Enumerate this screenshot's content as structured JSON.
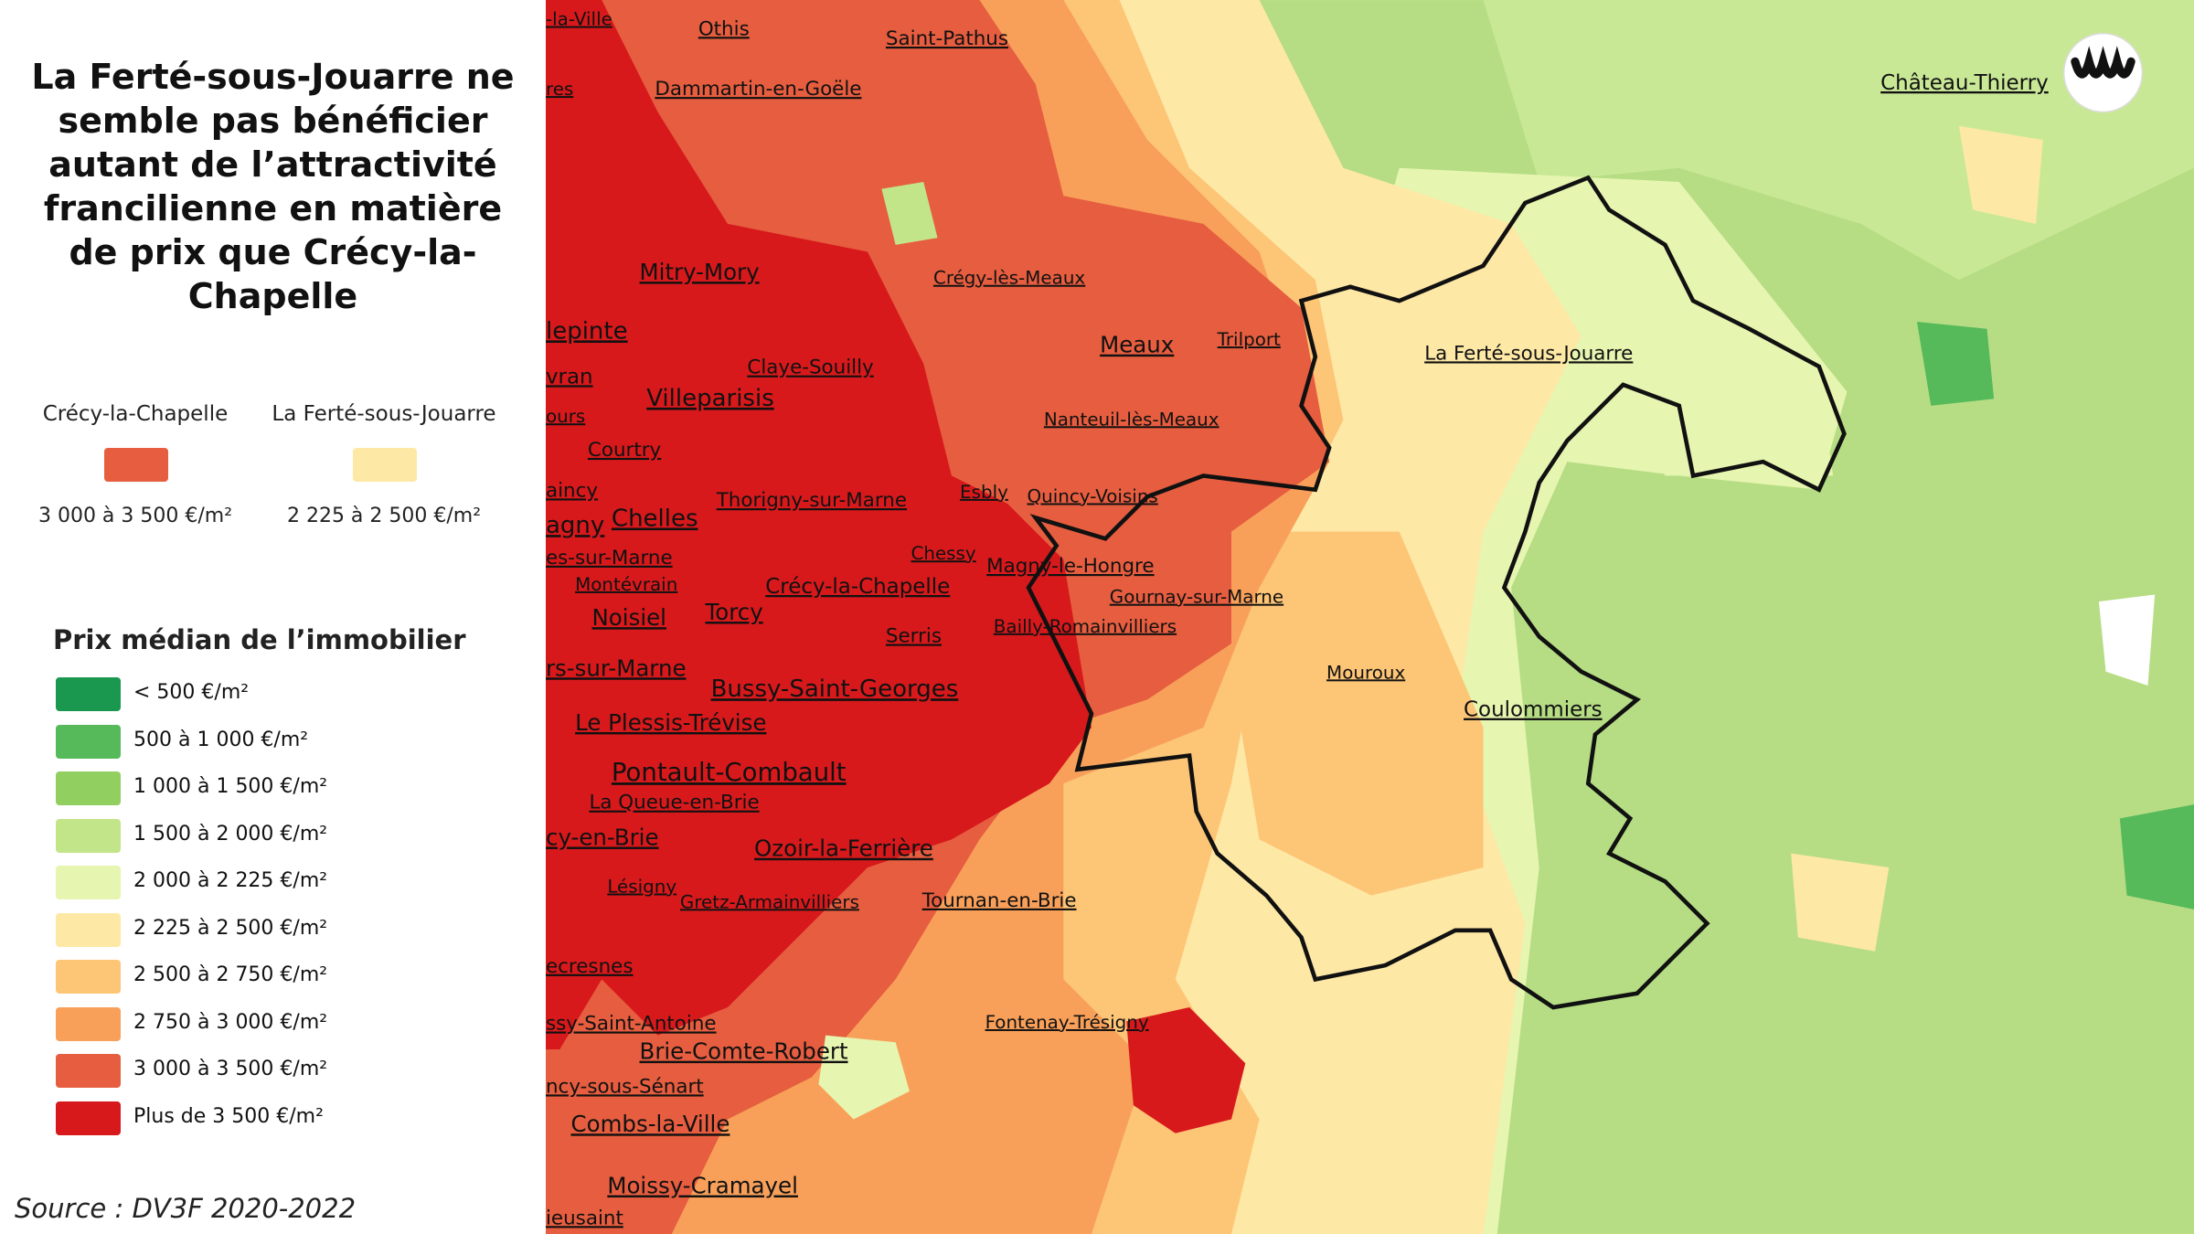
{
  "title": "La Ferté-sous-Jouarre ne semble pas bénéficier autant de l’attractivité francilienne en matière de prix que Crécy-la-Chapelle",
  "comparison": [
    {
      "place": "Crécy-la-Chapelle",
      "range": "3 000 à 3 500 €/m²",
      "color": "#e65d3f"
    },
    {
      "place": "La Ferté-sous-Jouarre",
      "range": "2 225 à 2 500 €/m²",
      "color": "#fee8a6"
    }
  ],
  "legend": {
    "title": "Prix médian de l’immobilier",
    "items": [
      {
        "label": "< 500 €/m²",
        "color": "#1a9850"
      },
      {
        "label": "500 à 1 000 €/m²",
        "color": "#56b95a"
      },
      {
        "label": "1 000 à 1 500 €/m²",
        "color": "#91cf60"
      },
      {
        "label": "1 500 à 2 000 €/m²",
        "color": "#c2e58a"
      },
      {
        "label": "2 000 à 2 225 €/m²",
        "color": "#e6f5b0"
      },
      {
        "label": "2 225 à 2 500 €/m²",
        "color": "#fee8a6"
      },
      {
        "label": "2 500 à 2 750 €/m²",
        "color": "#fdc576"
      },
      {
        "label": "2 750 à 3 000 €/m²",
        "color": "#f8a05a"
      },
      {
        "label": "3 000 à 3 500 €/m²",
        "color": "#e65d3f"
      },
      {
        "label": "Plus de 3 500 €/m²",
        "color": "#d7191c"
      }
    ]
  },
  "source": "Source : DV3F 2020-2022",
  "places": [
    "-la-Ville",
    "Othis",
    "Saint-Pathus",
    "res",
    "Dammartin-en-Goële",
    "Château-Thierry",
    "Mitry-Mory",
    "Crégy-lès-Meaux",
    "lepinte",
    "Meaux",
    "Trilport",
    "La Ferté-sous-Jouarre",
    "Claye-Souilly",
    "vran",
    "Villeparisis",
    "ours",
    "Nanteuil-lès-Meaux",
    "Courtry",
    "aincy",
    "Esbly",
    "Quincy-Voisins",
    "Thorigny-sur-Marne",
    "agny",
    "Chelles",
    "Chessy",
    "es-sur-Marne",
    "Magny-le-Hongre",
    "Gournay-sur-Marne",
    "Montévrain",
    "Crécy-la-Chapelle",
    "Torcy",
    "Noisiel",
    "Bailly-Romainvilliers",
    "Serris",
    "Mouroux",
    "rs-sur-Marne",
    "Bussy-Saint-Georges",
    "Coulommiers",
    "Le Plessis-Trévise",
    "Pontault-Combault",
    "La Queue-en-Brie",
    "cy-en-Brie",
    "Ozoir-la-Ferrière",
    "Lésigny",
    "Gretz-Armainvilliers",
    "Tournan-en-Brie",
    "ecresnes",
    "ssy-Saint-Antoine",
    "Fontenay-Trésigny",
    "Brie-Comte-Robert",
    "ncy-sous-Sénart",
    "Combs-la-Ville",
    "Moissy-Cramayel",
    "ieusaint"
  ]
}
